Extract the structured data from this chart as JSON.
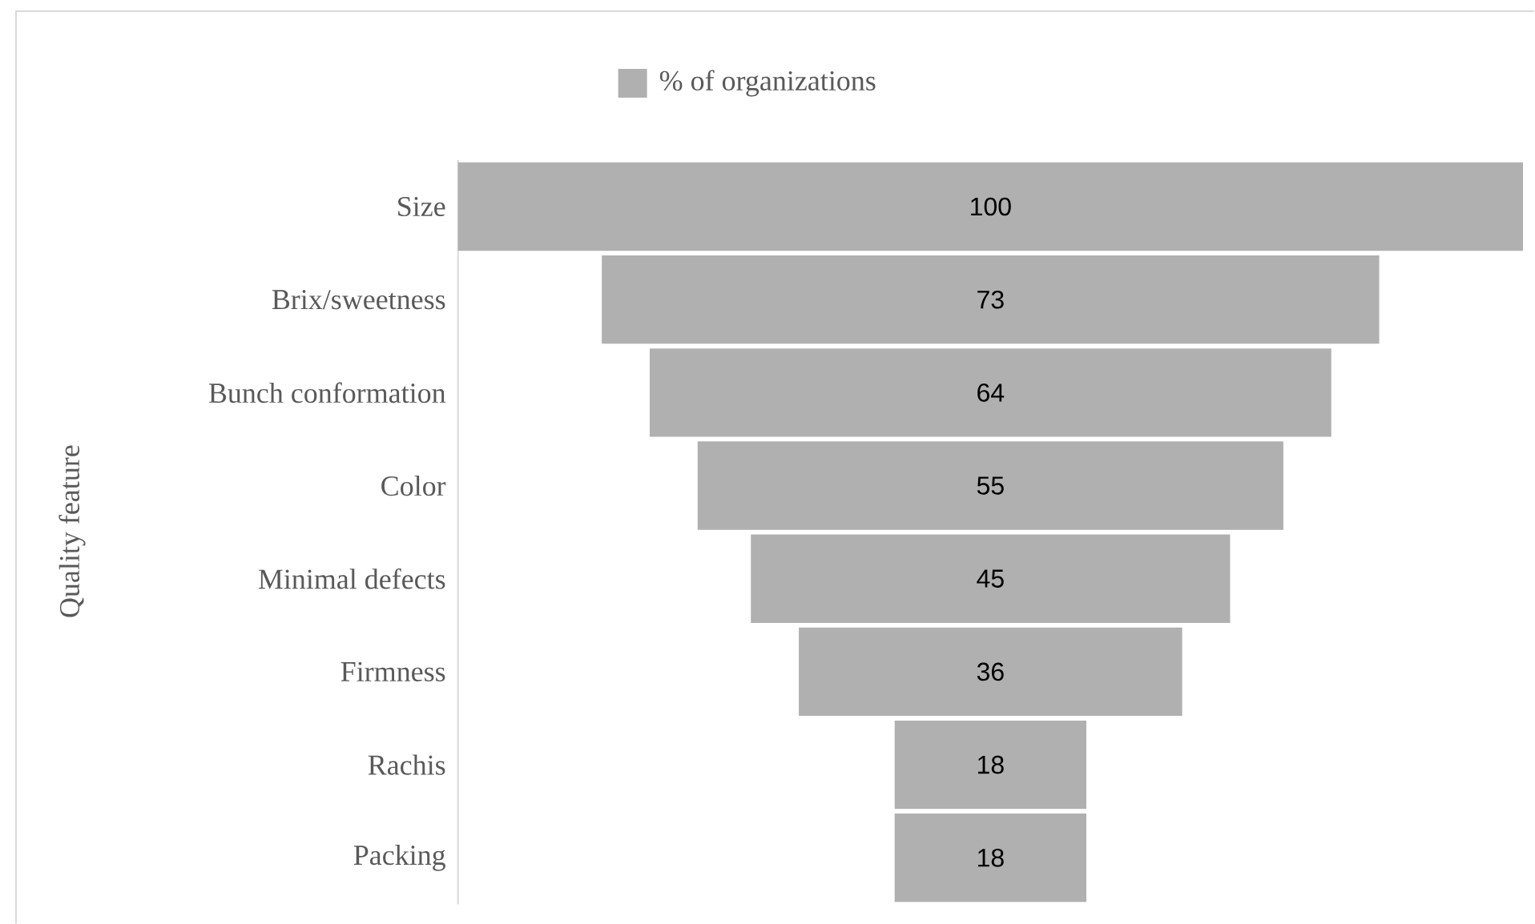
{
  "chart_data": {
    "type": "other",
    "ylabel": "Quality feature",
    "categories": [
      "Size",
      "Brix/sweetness",
      "Bunch conformation",
      "Color",
      "Minimal defects",
      "Firmness",
      "Rachis",
      "Packing"
    ],
    "series": [
      {
        "name": "% of organizations",
        "color": "#b0b0b0",
        "values": [
          100,
          73,
          64,
          55,
          45,
          36,
          18,
          18
        ]
      }
    ],
    "data_labels": true,
    "legend": "top"
  }
}
